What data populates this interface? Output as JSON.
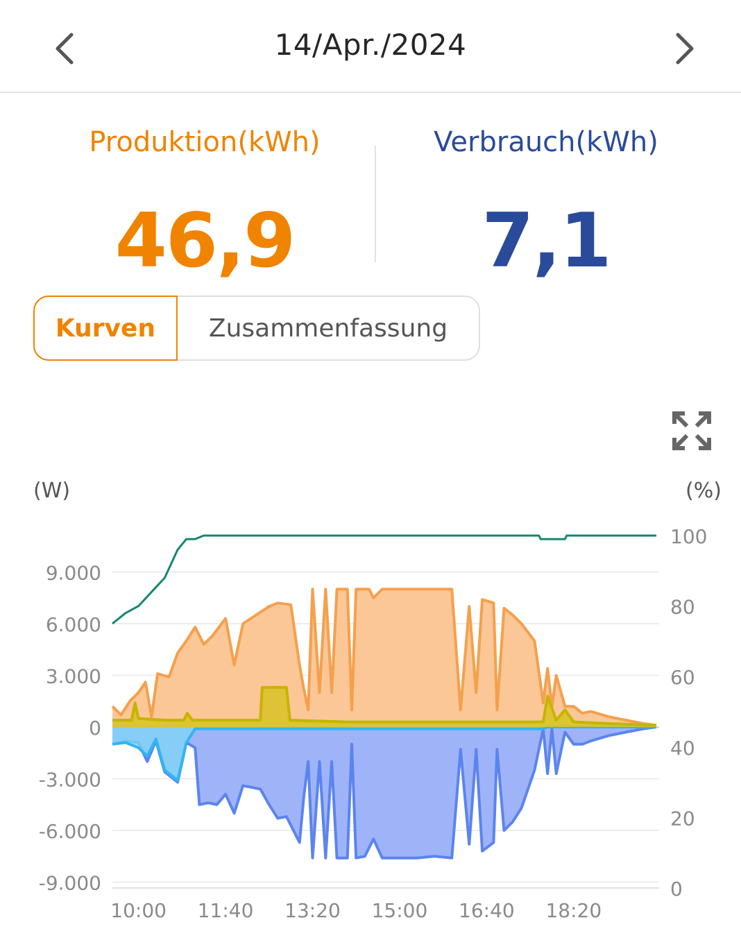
{
  "header": {
    "date": "14/Apr./2024",
    "prev_icon": "chevron-left-icon",
    "next_icon": "chevron-right-icon"
  },
  "summary": {
    "production_label": "Produktion(kWh)",
    "production_value": "46,9",
    "consumption_label": "Verbrauch(kWh)",
    "consumption_value": "7,1"
  },
  "tabs": {
    "curves": "Kurven",
    "summary": "Zusammenfassung",
    "active": "curves"
  },
  "expand_icon": "fullscreen-expand-icon",
  "colors": {
    "production": "#f08300",
    "consumption": "#2a4a9a",
    "pv_area": "#fbc18c",
    "pv_line": "#f5a04c",
    "grid_area": "#9ab0f8",
    "grid_line": "#5b84ee",
    "battery_line": "#c6b400",
    "battery_area": "#dcc12a",
    "cyan_line": "#2fb6f2",
    "soc_line": "#15866e"
  },
  "chart_data": {
    "type": "area",
    "left_unit": "(W)",
    "right_unit": "(%)",
    "y_left_ticks": [
      "9.000",
      "6.000",
      "3.000",
      "0",
      "-3.000",
      "-6.000",
      "-9.000"
    ],
    "y_right_ticks": [
      "100",
      "80",
      "60",
      "40",
      "20",
      "0"
    ],
    "x_ticks": [
      "10:00",
      "11:40",
      "13:20",
      "15:00",
      "16:40",
      "18:20"
    ],
    "ylim_left": [
      -9000,
      10000
    ],
    "ylim_right": [
      0,
      100
    ],
    "x_range": [
      "09:30",
      "19:55"
    ],
    "grid": true,
    "series": [
      {
        "key": "pv",
        "axis": "left",
        "points": [
          [
            "09:30",
            1200
          ],
          [
            "09:40",
            700
          ],
          [
            "09:50",
            1500
          ],
          [
            "10:00",
            2000
          ],
          [
            "10:08",
            2600
          ],
          [
            "10:15",
            600
          ],
          [
            "10:22",
            3100
          ],
          [
            "10:35",
            2900
          ],
          [
            "10:45",
            4300
          ],
          [
            "10:55",
            5000
          ],
          [
            "11:05",
            5800
          ],
          [
            "11:15",
            4800
          ],
          [
            "11:25",
            5300
          ],
          [
            "11:40",
            6300
          ],
          [
            "11:50",
            3600
          ],
          [
            "12:00",
            6000
          ],
          [
            "12:15",
            6500
          ],
          [
            "12:30",
            7000
          ],
          [
            "12:40",
            7200
          ],
          [
            "12:55",
            7100
          ],
          [
            "13:05",
            3600
          ],
          [
            "13:10",
            2200
          ],
          [
            "13:15",
            1000
          ],
          [
            "13:20",
            8000
          ],
          [
            "13:28",
            2000
          ],
          [
            "13:35",
            8000
          ],
          [
            "13:42",
            2000
          ],
          [
            "13:48",
            8000
          ],
          [
            "14:00",
            8000
          ],
          [
            "14:05",
            1000
          ],
          [
            "14:10",
            8000
          ],
          [
            "14:25",
            8000
          ],
          [
            "14:30",
            7500
          ],
          [
            "14:40",
            8000
          ],
          [
            "15:00",
            8000
          ],
          [
            "15:20",
            8000
          ],
          [
            "15:40",
            8000
          ],
          [
            "16:00",
            8000
          ],
          [
            "16:10",
            1000
          ],
          [
            "16:20",
            7000
          ],
          [
            "16:28",
            2000
          ],
          [
            "16:35",
            7400
          ],
          [
            "16:48",
            7200
          ],
          [
            "16:52",
            1000
          ],
          [
            "17:00",
            6900
          ],
          [
            "17:10",
            6500
          ],
          [
            "17:20",
            6000
          ],
          [
            "17:35",
            5000
          ],
          [
            "17:45",
            1400
          ],
          [
            "17:50",
            3400
          ],
          [
            "17:55",
            1200
          ],
          [
            "18:00",
            3000
          ],
          [
            "18:10",
            1200
          ],
          [
            "18:20",
            1200
          ],
          [
            "18:30",
            800
          ],
          [
            "18:40",
            900
          ],
          [
            "19:00",
            600
          ],
          [
            "19:20",
            400
          ],
          [
            "19:40",
            200
          ],
          [
            "19:55",
            100
          ]
        ]
      },
      {
        "key": "battery",
        "axis": "left",
        "points": [
          [
            "09:30",
            400
          ],
          [
            "09:52",
            400
          ],
          [
            "09:56",
            1400
          ],
          [
            "10:00",
            500
          ],
          [
            "10:30",
            400
          ],
          [
            "10:52",
            400
          ],
          [
            "10:56",
            800
          ],
          [
            "11:02",
            400
          ],
          [
            "12:20",
            400
          ],
          [
            "12:22",
            2300
          ],
          [
            "12:50",
            2300
          ],
          [
            "12:54",
            400
          ],
          [
            "14:00",
            300
          ],
          [
            "16:40",
            300
          ],
          [
            "17:30",
            300
          ],
          [
            "17:45",
            300
          ],
          [
            "17:50",
            1800
          ],
          [
            "18:00",
            400
          ],
          [
            "18:10",
            1000
          ],
          [
            "18:20",
            300
          ],
          [
            "19:00",
            200
          ],
          [
            "19:55",
            100
          ]
        ]
      },
      {
        "key": "grid",
        "axis": "left",
        "points": [
          [
            "09:30",
            -1000
          ],
          [
            "09:45",
            -800
          ],
          [
            "10:00",
            -900
          ],
          [
            "10:10",
            -2000
          ],
          [
            "10:20",
            -800
          ],
          [
            "10:30",
            -2600
          ],
          [
            "10:45",
            -3200
          ],
          [
            "10:55",
            -900
          ],
          [
            "11:05",
            -1200
          ],
          [
            "11:10",
            -4500
          ],
          [
            "11:20",
            -4400
          ],
          [
            "11:30",
            -4500
          ],
          [
            "11:40",
            -3900
          ],
          [
            "11:50",
            -5000
          ],
          [
            "12:00",
            -3400
          ],
          [
            "12:20",
            -3600
          ],
          [
            "12:30",
            -4500
          ],
          [
            "12:40",
            -5300
          ],
          [
            "12:50",
            -5200
          ],
          [
            "13:05",
            -6700
          ],
          [
            "13:10",
            -4000
          ],
          [
            "13:15",
            -2000
          ],
          [
            "13:20",
            -7600
          ],
          [
            "13:28",
            -2000
          ],
          [
            "13:35",
            -7600
          ],
          [
            "13:42",
            -2000
          ],
          [
            "13:48",
            -7600
          ],
          [
            "14:00",
            -7600
          ],
          [
            "14:05",
            -1000
          ],
          [
            "14:10",
            -7600
          ],
          [
            "14:20",
            -7500
          ],
          [
            "14:30",
            -6500
          ],
          [
            "14:40",
            -7600
          ],
          [
            "15:00",
            -7600
          ],
          [
            "15:20",
            -7600
          ],
          [
            "15:40",
            -7500
          ],
          [
            "16:00",
            -7600
          ],
          [
            "16:10",
            -1300
          ],
          [
            "16:20",
            -6800
          ],
          [
            "16:28",
            -1300
          ],
          [
            "16:35",
            -7200
          ],
          [
            "16:48",
            -6700
          ],
          [
            "16:52",
            -1300
          ],
          [
            "17:00",
            -6000
          ],
          [
            "17:10",
            -5500
          ],
          [
            "17:20",
            -4700
          ],
          [
            "17:35",
            -2500
          ],
          [
            "17:45",
            -100
          ],
          [
            "17:50",
            -2700
          ],
          [
            "17:55",
            -100
          ],
          [
            "18:00",
            -2700
          ],
          [
            "18:10",
            -300
          ],
          [
            "18:20",
            -1000
          ],
          [
            "18:30",
            -1000
          ],
          [
            "18:40",
            -800
          ],
          [
            "19:00",
            -500
          ],
          [
            "19:20",
            -300
          ],
          [
            "19:40",
            -100
          ],
          [
            "19:55",
            0
          ]
        ]
      },
      {
        "key": "cyan",
        "axis": "left",
        "points": [
          [
            "09:30",
            -1000
          ],
          [
            "09:45",
            -900
          ],
          [
            "10:00",
            -1200
          ],
          [
            "10:10",
            -1700
          ],
          [
            "10:20",
            -700
          ],
          [
            "10:30",
            -2500
          ],
          [
            "10:45",
            -3100
          ],
          [
            "10:55",
            -900
          ],
          [
            "11:05",
            -100
          ],
          [
            "17:45",
            -100
          ],
          [
            "17:50",
            0
          ],
          [
            "19:55",
            0
          ]
        ]
      },
      {
        "key": "soc",
        "axis": "right",
        "points": [
          [
            "09:30",
            75
          ],
          [
            "09:45",
            78
          ],
          [
            "10:00",
            80
          ],
          [
            "10:15",
            84
          ],
          [
            "10:30",
            88
          ],
          [
            "10:45",
            96
          ],
          [
            "10:55",
            99
          ],
          [
            "11:05",
            99
          ],
          [
            "11:15",
            100
          ],
          [
            "17:40",
            100
          ],
          [
            "17:42",
            99
          ],
          [
            "18:10",
            99
          ],
          [
            "18:12",
            100
          ],
          [
            "19:55",
            100
          ]
        ]
      }
    ]
  }
}
